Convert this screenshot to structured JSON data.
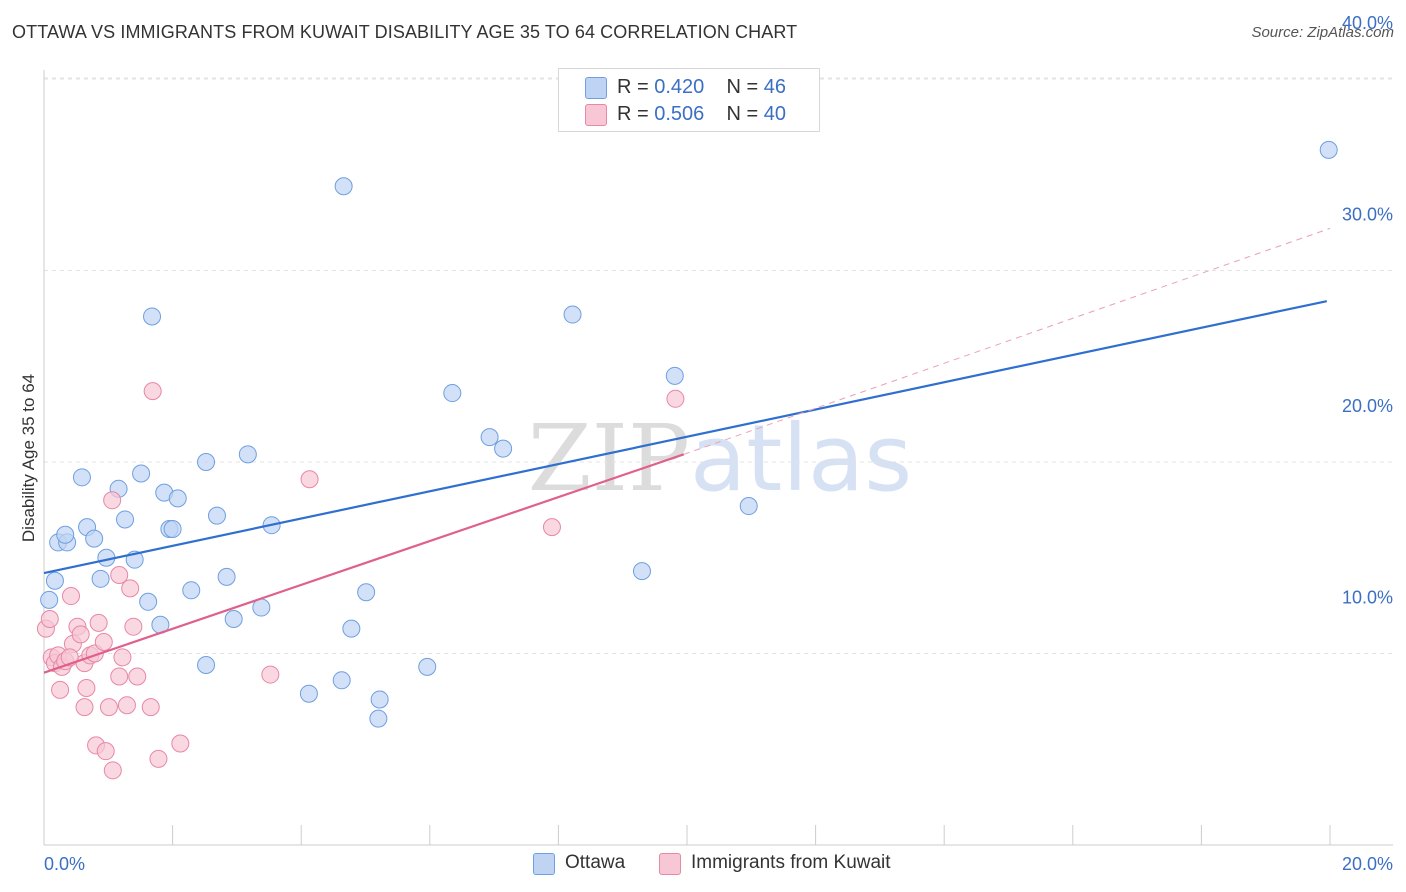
{
  "chart_data": {
    "type": "scatter",
    "title": "OTTAWA VS IMMIGRANTS FROM KUWAIT DISABILITY AGE 35 TO 64 CORRELATION CHART",
    "source": "Source: ZipAtlas.com",
    "ylabel": "Disability Age 35 to 64",
    "xlabel": "",
    "xlim": [
      0,
      20
    ],
    "ylim": [
      0,
      42
    ],
    "x_tick_labels": [
      "0.0%",
      "20.0%"
    ],
    "y_ticks": [
      10,
      20,
      30,
      40
    ],
    "y_tick_labels": [
      "10.0%",
      "20.0%",
      "30.0%",
      "40.0%"
    ],
    "watermark": "ZIPatlas",
    "legend": [
      {
        "name": "Ottawa",
        "r_label": "R =",
        "r": "0.420",
        "n_label": "N =",
        "n": "46"
      },
      {
        "name": "Immigrants from Kuwait",
        "r_label": "R =",
        "r": "0.506",
        "n_label": "N =",
        "n": "40"
      }
    ],
    "series": [
      {
        "name": "Ottawa",
        "color": "#6f9fe0",
        "fill": "#bfd4f4",
        "trend": {
          "x0": 0,
          "y0": 14.2,
          "x1": 19.95,
          "y1": 28.4
        },
        "points": [
          [
            0.08,
            12.8
          ],
          [
            0.17,
            13.8
          ],
          [
            0.22,
            15.8
          ],
          [
            0.36,
            15.8
          ],
          [
            0.33,
            16.2
          ],
          [
            0.59,
            19.2
          ],
          [
            0.67,
            16.6
          ],
          [
            0.78,
            16.0
          ],
          [
            0.88,
            13.9
          ],
          [
            0.97,
            15.0
          ],
          [
            1.16,
            18.6
          ],
          [
            1.26,
            17.0
          ],
          [
            1.41,
            14.9
          ],
          [
            1.51,
            19.4
          ],
          [
            1.62,
            12.7
          ],
          [
            1.68,
            27.6
          ],
          [
            1.81,
            11.5
          ],
          [
            1.87,
            18.4
          ],
          [
            1.95,
            16.5
          ],
          [
            2.08,
            18.1
          ],
          [
            2.29,
            13.3
          ],
          [
            2.52,
            9.4
          ],
          [
            2.52,
            20.0
          ],
          [
            2.69,
            17.2
          ],
          [
            2.84,
            14.0
          ],
          [
            2.95,
            11.8
          ],
          [
            3.17,
            20.4
          ],
          [
            3.38,
            12.4
          ],
          [
            3.54,
            16.7
          ],
          [
            4.12,
            7.9
          ],
          [
            4.63,
            8.6
          ],
          [
            4.66,
            34.4
          ],
          [
            4.78,
            11.3
          ],
          [
            5.01,
            13.2
          ],
          [
            5.2,
            6.6
          ],
          [
            5.22,
            7.6
          ],
          [
            5.96,
            9.3
          ],
          [
            6.35,
            23.6
          ],
          [
            6.93,
            21.3
          ],
          [
            7.14,
            20.7
          ],
          [
            8.22,
            27.7
          ],
          [
            9.3,
            14.3
          ],
          [
            9.81,
            24.5
          ],
          [
            10.96,
            17.7
          ],
          [
            19.98,
            36.3
          ],
          [
            2.0,
            16.5
          ]
        ]
      },
      {
        "name": "Immigrants from Kuwait",
        "color": "#e887a7",
        "fill": "#f7c7d6",
        "trend": {
          "x0": 0,
          "y0": 9.0,
          "x1": 9.95,
          "y1": 20.4
        },
        "trend_dashed": {
          "x0": 9.95,
          "y0": 20.4,
          "x1": 20.0,
          "y1": 32.2
        },
        "points": [
          [
            0.03,
            11.3
          ],
          [
            0.12,
            9.8
          ],
          [
            0.17,
            9.5
          ],
          [
            0.22,
            9.9
          ],
          [
            0.25,
            8.1
          ],
          [
            0.28,
            9.3
          ],
          [
            0.33,
            9.6
          ],
          [
            0.42,
            13.0
          ],
          [
            0.45,
            10.5
          ],
          [
            0.52,
            11.4
          ],
          [
            0.57,
            11.0
          ],
          [
            0.63,
            9.5
          ],
          [
            0.63,
            7.2
          ],
          [
            0.66,
            8.2
          ],
          [
            0.72,
            9.9
          ],
          [
            0.79,
            10.0
          ],
          [
            0.81,
            5.2
          ],
          [
            0.85,
            11.6
          ],
          [
            0.93,
            10.6
          ],
          [
            0.96,
            4.9
          ],
          [
            1.01,
            7.2
          ],
          [
            1.06,
            18.0
          ],
          [
            1.07,
            3.9
          ],
          [
            1.17,
            8.8
          ],
          [
            1.17,
            14.1
          ],
          [
            1.22,
            9.8
          ],
          [
            1.29,
            7.3
          ],
          [
            1.34,
            13.4
          ],
          [
            1.39,
            11.4
          ],
          [
            1.45,
            8.8
          ],
          [
            1.66,
            7.2
          ],
          [
            1.69,
            23.7
          ],
          [
            1.78,
            4.5
          ],
          [
            2.12,
            5.3
          ],
          [
            3.52,
            8.9
          ],
          [
            4.13,
            19.1
          ],
          [
            7.9,
            16.6
          ],
          [
            9.82,
            23.3
          ],
          [
            0.09,
            11.8
          ],
          [
            0.4,
            9.8
          ]
        ]
      }
    ]
  }
}
